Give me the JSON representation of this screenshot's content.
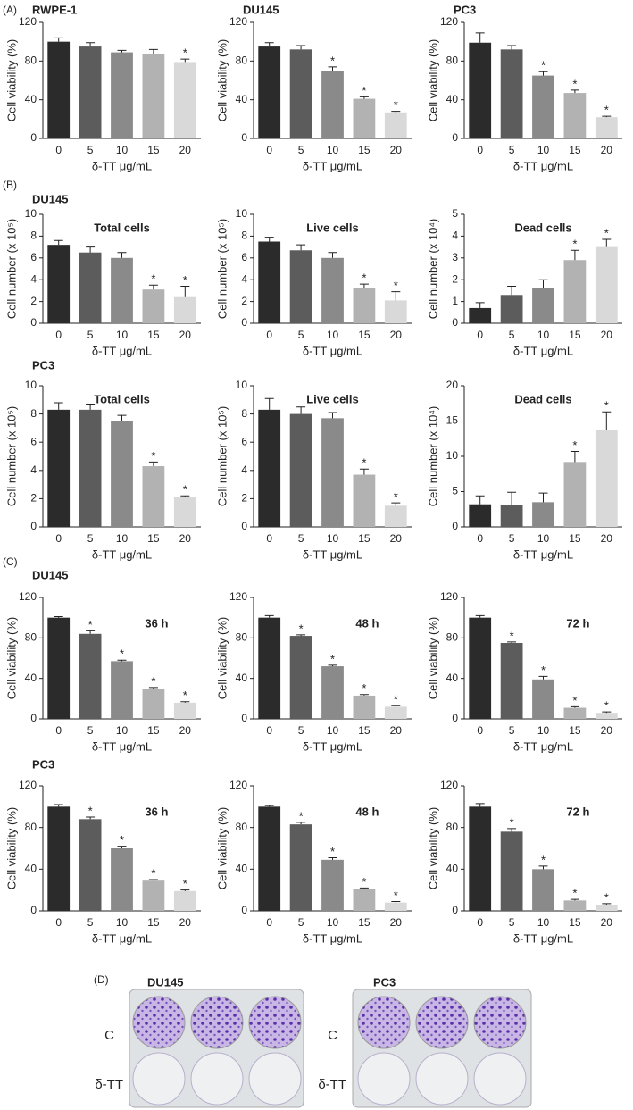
{
  "panels": [
    "(A)",
    "(B)",
    "(C)",
    "(D)"
  ],
  "chart_data": [
    {
      "type": "bar",
      "title": "RWPE-1",
      "ylabel": "Cell viability (%)",
      "xlabel": "δ-TT μg/mL",
      "categories": [
        "0",
        "5",
        "10",
        "15",
        "20"
      ],
      "values": [
        100,
        95,
        89,
        87,
        79
      ],
      "errors": [
        4,
        4,
        2,
        5,
        3
      ],
      "markers": [
        null,
        null,
        null,
        null,
        "*"
      ],
      "colors": [
        "#2b2b2b",
        "#5c5c5c",
        "#8a8a8a",
        "#b2b2b2",
        "#d9d9d9"
      ],
      "ylim": [
        0,
        120
      ],
      "yticks": [
        0,
        40,
        80,
        120
      ]
    },
    {
      "type": "bar",
      "title": "DU145",
      "ylabel": "Cell viability (%)",
      "xlabel": "δ-TT μg/mL",
      "categories": [
        "0",
        "5",
        "10",
        "15",
        "20"
      ],
      "values": [
        95,
        92,
        70,
        41,
        27
      ],
      "errors": [
        4,
        4,
        4,
        2,
        1
      ],
      "markers": [
        null,
        null,
        "*",
        "*",
        "*"
      ],
      "colors": [
        "#2b2b2b",
        "#5c5c5c",
        "#8a8a8a",
        "#b2b2b2",
        "#d9d9d9"
      ],
      "ylim": [
        0,
        120
      ],
      "yticks": [
        0,
        40,
        80,
        120
      ]
    },
    {
      "type": "bar",
      "title": "PC3",
      "ylabel": "Cell viability (%)",
      "xlabel": "δ-TT μg/mL",
      "categories": [
        "0",
        "5",
        "10",
        "15",
        "20"
      ],
      "values": [
        99,
        92,
        65,
        47,
        22
      ],
      "errors": [
        10,
        4,
        4,
        3,
        1
      ],
      "markers": [
        null,
        null,
        "*",
        "*",
        "*"
      ],
      "colors": [
        "#2b2b2b",
        "#5c5c5c",
        "#8a8a8a",
        "#b2b2b2",
        "#d9d9d9"
      ],
      "ylim": [
        0,
        120
      ],
      "yticks": [
        0,
        40,
        80,
        120
      ]
    },
    {
      "type": "bar",
      "group": "DU145",
      "title": "Total cells",
      "ylabel": "Cell number (x 10⁵)",
      "xlabel": "δ-TT μg/mL",
      "categories": [
        "0",
        "5",
        "10",
        "15",
        "20"
      ],
      "values": [
        7.2,
        6.5,
        6.0,
        3.1,
        2.4
      ],
      "errors": [
        0.4,
        0.5,
        0.5,
        0.4,
        1.0
      ],
      "markers": [
        null,
        null,
        null,
        "*",
        "*"
      ],
      "colors": [
        "#2b2b2b",
        "#5c5c5c",
        "#8a8a8a",
        "#b2b2b2",
        "#d9d9d9"
      ],
      "ylim": [
        0,
        10
      ],
      "yticks": [
        0,
        2,
        4,
        6,
        8,
        10
      ]
    },
    {
      "type": "bar",
      "title": "Live cells",
      "ylabel": "Cell number (x 10⁵)",
      "xlabel": "δ-TT μg/mL",
      "categories": [
        "0",
        "5",
        "10",
        "15",
        "20"
      ],
      "values": [
        7.5,
        6.7,
        6.0,
        3.2,
        2.1
      ],
      "errors": [
        0.4,
        0.5,
        0.5,
        0.4,
        0.8
      ],
      "markers": [
        null,
        null,
        null,
        "*",
        "*"
      ],
      "colors": [
        "#2b2b2b",
        "#5c5c5c",
        "#8a8a8a",
        "#b2b2b2",
        "#d9d9d9"
      ],
      "ylim": [
        0,
        10
      ],
      "yticks": [
        0,
        2,
        4,
        6,
        8,
        10
      ]
    },
    {
      "type": "bar",
      "title": "Dead cells",
      "ylabel": "Cell number (x 10⁴)",
      "xlabel": "δ-TT μg/mL",
      "categories": [
        "0",
        "5",
        "10",
        "15",
        "20"
      ],
      "values": [
        0.7,
        1.3,
        1.6,
        2.9,
        3.5
      ],
      "errors": [
        0.25,
        0.4,
        0.4,
        0.45,
        0.35
      ],
      "markers": [
        null,
        null,
        null,
        "*",
        "*"
      ],
      "colors": [
        "#2b2b2b",
        "#5c5c5c",
        "#8a8a8a",
        "#b2b2b2",
        "#d9d9d9"
      ],
      "ylim": [
        0,
        5
      ],
      "yticks": [
        0,
        1,
        2,
        3,
        4,
        5
      ]
    },
    {
      "type": "bar",
      "group": "PC3",
      "title": "Total cells",
      "ylabel": "Cell number (x 10⁵)",
      "xlabel": "δ-TT μg/mL",
      "categories": [
        "0",
        "5",
        "10",
        "15",
        "20"
      ],
      "values": [
        8.3,
        8.3,
        7.5,
        4.3,
        2.1
      ],
      "errors": [
        0.5,
        0.4,
        0.4,
        0.3,
        0.1
      ],
      "markers": [
        null,
        null,
        null,
        "*",
        "*"
      ],
      "colors": [
        "#2b2b2b",
        "#5c5c5c",
        "#8a8a8a",
        "#b2b2b2",
        "#d9d9d9"
      ],
      "ylim": [
        0,
        10
      ],
      "yticks": [
        0,
        2,
        4,
        6,
        8,
        10
      ]
    },
    {
      "type": "bar",
      "title": "Live cells",
      "ylabel": "Cell number (x 10⁵)",
      "xlabel": "δ-TT μg/mL",
      "categories": [
        "0",
        "5",
        "10",
        "15",
        "20"
      ],
      "values": [
        8.3,
        8.0,
        7.7,
        3.7,
        1.5
      ],
      "errors": [
        0.8,
        0.5,
        0.4,
        0.4,
        0.2
      ],
      "markers": [
        null,
        null,
        null,
        "*",
        "*"
      ],
      "colors": [
        "#2b2b2b",
        "#5c5c5c",
        "#8a8a8a",
        "#b2b2b2",
        "#d9d9d9"
      ],
      "ylim": [
        0,
        10
      ],
      "yticks": [
        0,
        2,
        4,
        6,
        8,
        10
      ]
    },
    {
      "type": "bar",
      "title": "Dead cells",
      "ylabel": "Cell number (x 10⁴)",
      "xlabel": "δ-TT μg/mL",
      "categories": [
        "0",
        "5",
        "10",
        "15",
        "20"
      ],
      "values": [
        3.2,
        3.1,
        3.5,
        9.2,
        13.8
      ],
      "errors": [
        1.2,
        1.8,
        1.3,
        1.5,
        2.5
      ],
      "markers": [
        null,
        null,
        null,
        "*",
        "*"
      ],
      "colors": [
        "#2b2b2b",
        "#5c5c5c",
        "#8a8a8a",
        "#b2b2b2",
        "#d9d9d9"
      ],
      "ylim": [
        0,
        20
      ],
      "yticks": [
        0,
        5,
        10,
        15,
        20
      ]
    },
    {
      "type": "bar",
      "group": "DU145",
      "title": "36 h",
      "ylabel": "Cell viability (%)",
      "xlabel": "δ-TT μg/mL",
      "categories": [
        "0",
        "5",
        "10",
        "15",
        "20"
      ],
      "values": [
        100,
        84,
        57,
        30,
        16
      ],
      "errors": [
        1,
        3,
        1,
        1,
        1
      ],
      "markers": [
        null,
        "*",
        "*",
        "*",
        "*"
      ],
      "colors": [
        "#2b2b2b",
        "#5c5c5c",
        "#8a8a8a",
        "#b2b2b2",
        "#d9d9d9"
      ],
      "ylim": [
        0,
        120
      ],
      "yticks": [
        0,
        40,
        80,
        120
      ]
    },
    {
      "type": "bar",
      "title": "48 h",
      "ylabel": "Cell viability (%)",
      "xlabel": "δ-TT μg/mL",
      "categories": [
        "0",
        "5",
        "10",
        "15",
        "20"
      ],
      "values": [
        100,
        82,
        52,
        23,
        12
      ],
      "errors": [
        2,
        1,
        1,
        1,
        1
      ],
      "markers": [
        null,
        "*",
        "*",
        "*",
        "*"
      ],
      "colors": [
        "#2b2b2b",
        "#5c5c5c",
        "#8a8a8a",
        "#b2b2b2",
        "#d9d9d9"
      ],
      "ylim": [
        0,
        120
      ],
      "yticks": [
        0,
        40,
        80,
        120
      ]
    },
    {
      "type": "bar",
      "title": "72 h",
      "ylabel": "Cell viability (%)",
      "xlabel": "δ-TT μg/mL",
      "categories": [
        "0",
        "5",
        "10",
        "15",
        "20"
      ],
      "values": [
        100,
        75,
        39,
        11,
        6
      ],
      "errors": [
        2,
        1,
        3,
        1,
        1
      ],
      "markers": [
        null,
        "*",
        "*",
        "*",
        "*"
      ],
      "colors": [
        "#2b2b2b",
        "#5c5c5c",
        "#8a8a8a",
        "#b2b2b2",
        "#d9d9d9"
      ],
      "ylim": [
        0,
        120
      ],
      "yticks": [
        0,
        40,
        80,
        120
      ]
    },
    {
      "type": "bar",
      "group": "PC3",
      "title": "36 h",
      "ylabel": "Cell viability (%)",
      "xlabel": "δ-TT μg/mL",
      "categories": [
        "0",
        "5",
        "10",
        "15",
        "20"
      ],
      "values": [
        100,
        88,
        60,
        29,
        19
      ],
      "errors": [
        2,
        2,
        2,
        1,
        1
      ],
      "markers": [
        null,
        "*",
        "*",
        "*",
        "*"
      ],
      "colors": [
        "#2b2b2b",
        "#5c5c5c",
        "#8a8a8a",
        "#b2b2b2",
        "#d9d9d9"
      ],
      "ylim": [
        0,
        120
      ],
      "yticks": [
        0,
        40,
        80,
        120
      ]
    },
    {
      "type": "bar",
      "title": "48 h",
      "ylabel": "Cell viability (%)",
      "xlabel": "δ-TT μg/mL",
      "categories": [
        "0",
        "5",
        "10",
        "15",
        "20"
      ],
      "values": [
        100,
        83,
        49,
        21,
        8
      ],
      "errors": [
        1,
        2,
        2,
        1,
        1
      ],
      "markers": [
        null,
        "*",
        "*",
        "*",
        "*"
      ],
      "colors": [
        "#2b2b2b",
        "#5c5c5c",
        "#8a8a8a",
        "#b2b2b2",
        "#d9d9d9"
      ],
      "ylim": [
        0,
        120
      ],
      "yticks": [
        0,
        40,
        80,
        120
      ]
    },
    {
      "type": "bar",
      "title": "72 h",
      "ylabel": "Cell viability (%)",
      "xlabel": "δ-TT μg/mL",
      "categories": [
        "0",
        "5",
        "10",
        "15",
        "20"
      ],
      "values": [
        100,
        76,
        40,
        10,
        6
      ],
      "errors": [
        3,
        3,
        3,
        1,
        1
      ],
      "markers": [
        null,
        "*",
        "*",
        "*",
        "*"
      ],
      "colors": [
        "#2b2b2b",
        "#5c5c5c",
        "#8a8a8a",
        "#b2b2b2",
        "#d9d9d9"
      ],
      "ylim": [
        0,
        120
      ],
      "yticks": [
        0,
        40,
        80,
        120
      ]
    }
  ],
  "plates": [
    {
      "title": "DU145",
      "rows": [
        "C",
        "δ-TT"
      ]
    },
    {
      "title": "PC3",
      "rows": [
        "C",
        "δ-TT"
      ]
    }
  ]
}
